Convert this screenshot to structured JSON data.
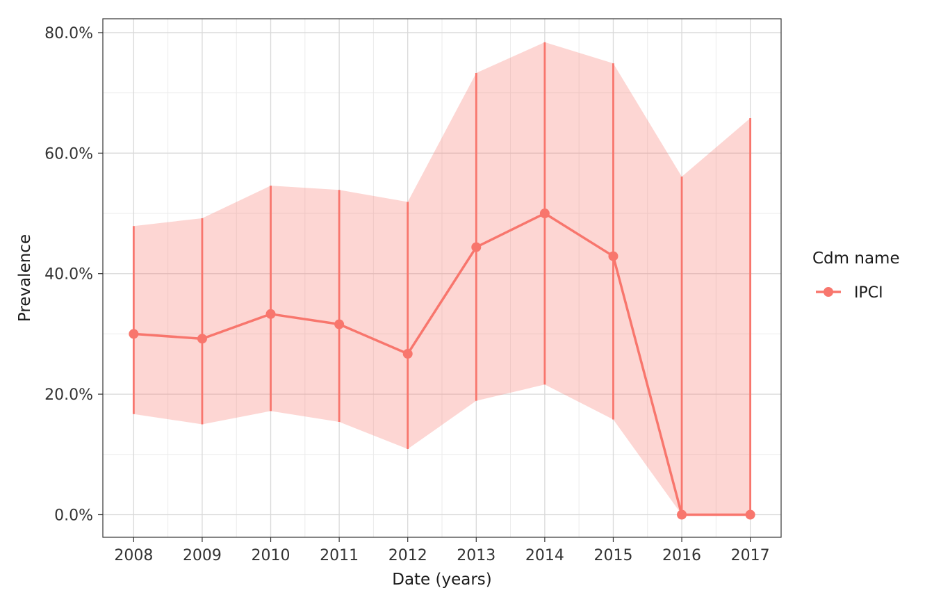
{
  "chart_data": {
    "type": "line",
    "title": "",
    "xlabel": "Date (years)",
    "ylabel": "Prevalence",
    "x": [
      2008,
      2009,
      2010,
      2011,
      2012,
      2013,
      2014,
      2015,
      2016,
      2017
    ],
    "x_tick_labels": [
      "2008",
      "2009",
      "2010",
      "2011",
      "2012",
      "2013",
      "2014",
      "2015",
      "2016",
      "2017"
    ],
    "y_ticks": [
      0.0,
      0.2,
      0.4,
      0.6,
      0.8
    ],
    "y_tick_labels": [
      "0.0%",
      "20.0%",
      "40.0%",
      "60.0%",
      "80.0%"
    ],
    "xlim": [
      2007.55,
      2017.45
    ],
    "ylim": [
      -0.0375,
      0.823
    ],
    "grid": true,
    "legend": {
      "title": "Cdm name",
      "position": "right"
    },
    "series": [
      {
        "name": "IPCI",
        "color": "#F8766D",
        "ribbon_color": "#F8766D",
        "values": [
          0.3,
          0.292,
          0.333,
          0.316,
          0.267,
          0.444,
          0.5,
          0.429,
          0.0,
          0.0
        ],
        "lower": [
          0.167,
          0.15,
          0.172,
          0.154,
          0.109,
          0.189,
          0.216,
          0.158,
          0.0,
          0.0
        ],
        "upper": [
          0.479,
          0.492,
          0.546,
          0.539,
          0.519,
          0.733,
          0.784,
          0.749,
          0.561,
          0.658
        ]
      }
    ]
  }
}
